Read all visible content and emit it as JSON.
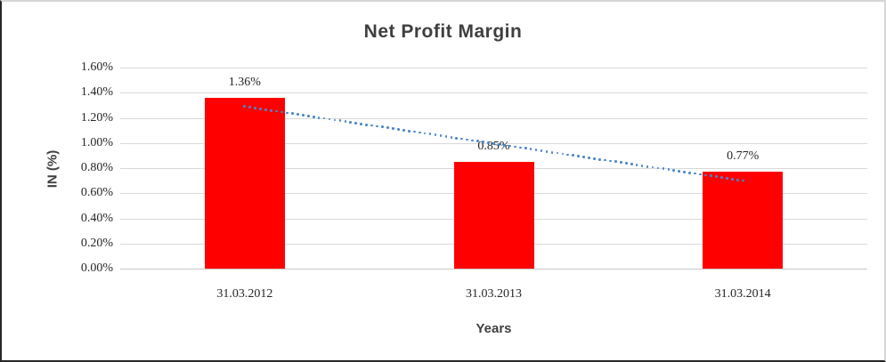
{
  "chart_data": {
    "type": "bar",
    "title": "Net Profit Margin",
    "xlabel": "Years",
    "ylabel": "IN (%)",
    "categories": [
      "31.03.2012",
      "31.03.2013",
      "31.03.2014"
    ],
    "values": [
      1.36,
      0.85,
      0.77
    ],
    "data_labels": [
      "1.36%",
      "0.85%",
      "0.77%"
    ],
    "ylim": [
      0,
      1.6
    ],
    "ytick_step": 0.2,
    "ytick_labels": [
      "0.00%",
      "0.20%",
      "0.40%",
      "0.60%",
      "0.80%",
      "1.00%",
      "1.20%",
      "1.40%",
      "1.60%"
    ],
    "grid": true,
    "legend": "none",
    "bar_color": "#ff0000",
    "gridline_color": "#d9d9d9",
    "trendline": {
      "type": "linear",
      "style": "dotted",
      "color": "#4a86c8",
      "start_value": 1.29,
      "end_value": 0.7
    }
  }
}
